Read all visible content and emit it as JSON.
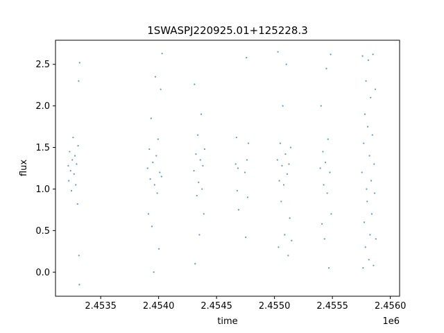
{
  "chart_data": {
    "type": "scatter",
    "title": "1SWASPJ220925.01+125228.3",
    "xlabel": "time",
    "ylabel": "flux",
    "x_offset_label": "1e6",
    "xlim": [
      2453110,
      2456080
    ],
    "ylim": [
      -0.29,
      2.79
    ],
    "x_ticks": [
      2453500,
      2454000,
      2454500,
      2455000,
      2455500,
      2456000
    ],
    "x_tick_labels": [
      "2.4535",
      "2.4540",
      "2.4545",
      "2.4550",
      "2.4555",
      "2.4560"
    ],
    "y_ticks": [
      0.0,
      0.5,
      1.0,
      1.5,
      2.0,
      2.5
    ],
    "y_tick_labels": [
      "0.0",
      "0.5",
      "1.0",
      "1.5",
      "2.0",
      "2.5"
    ],
    "grid": false,
    "marker_color": "#1f77b4",
    "series": [
      {
        "points": [
          [
            2453220,
            1.28
          ],
          [
            2453225,
            1.1
          ],
          [
            2453232,
            1.45
          ],
          [
            2453240,
            1.22
          ],
          [
            2453248,
            0.98
          ],
          [
            2453255,
            1.35
          ],
          [
            2453262,
            1.62
          ],
          [
            2453270,
            1.18
          ],
          [
            2453278,
            1.4
          ],
          [
            2453285,
            1.05
          ],
          [
            2453292,
            1.3
          ],
          [
            2453300,
            0.82
          ],
          [
            2453305,
            1.52
          ],
          [
            2453310,
            2.3
          ],
          [
            2453312,
            0.2
          ],
          [
            2453316,
            -0.15
          ],
          [
            2453318,
            2.52
          ],
          [
            2453905,
            1.25
          ],
          [
            2453912,
            0.7
          ],
          [
            2453920,
            1.48
          ],
          [
            2453928,
            1.12
          ],
          [
            2453935,
            1.85
          ],
          [
            2453942,
            0.55
          ],
          [
            2453950,
            1.32
          ],
          [
            2453958,
            0.0
          ],
          [
            2453965,
            1.05
          ],
          [
            2453972,
            2.35
          ],
          [
            2453980,
            1.4
          ],
          [
            2453988,
            0.95
          ],
          [
            2453995,
            1.6
          ],
          [
            2454003,
            0.28
          ],
          [
            2454010,
            1.2
          ],
          [
            2454018,
            2.2
          ],
          [
            2454025,
            1.15
          ],
          [
            2454030,
            2.63
          ],
          [
            2454305,
            1.22
          ],
          [
            2454310,
            2.26
          ],
          [
            2454315,
            0.1
          ],
          [
            2454322,
            1.42
          ],
          [
            2454330,
            0.92
          ],
          [
            2454338,
            1.65
          ],
          [
            2454345,
            1.08
          ],
          [
            2454352,
            0.45
          ],
          [
            2454360,
            1.35
          ],
          [
            2454368,
            1.9
          ],
          [
            2454375,
            1.0
          ],
          [
            2454382,
            1.28
          ],
          [
            2454390,
            0.7
          ],
          [
            2454397,
            1.48
          ],
          [
            2454665,
            1.3
          ],
          [
            2454672,
            1.62
          ],
          [
            2454678,
            0.98
          ],
          [
            2454685,
            1.25
          ],
          [
            2454690,
            0.75
          ],
          [
            2454745,
            1.2
          ],
          [
            2454752,
            0.42
          ],
          [
            2454758,
            2.58
          ],
          [
            2454762,
            1.35
          ],
          [
            2454768,
            0.9
          ],
          [
            2454775,
            1.55
          ],
          [
            2455025,
            1.35
          ],
          [
            2455030,
            2.65
          ],
          [
            2455035,
            0.3
          ],
          [
            2455042,
            1.1
          ],
          [
            2455050,
            1.55
          ],
          [
            2455058,
            0.85
          ],
          [
            2455065,
            1.28
          ],
          [
            2455072,
            2.0
          ],
          [
            2455080,
            1.05
          ],
          [
            2455088,
            0.45
          ],
          [
            2455095,
            1.42
          ],
          [
            2455102,
            2.5
          ],
          [
            2455110,
            1.18
          ],
          [
            2455118,
            0.2
          ],
          [
            2455125,
            1.3
          ],
          [
            2455132,
            0.65
          ],
          [
            2455140,
            1.5
          ],
          [
            2455148,
            0.38
          ],
          [
            2455395,
            1.25
          ],
          [
            2455402,
            2.0
          ],
          [
            2455410,
            0.58
          ],
          [
            2455418,
            1.45
          ],
          [
            2455425,
            1.05
          ],
          [
            2455432,
            0.4
          ],
          [
            2455440,
            1.32
          ],
          [
            2455448,
            2.45
          ],
          [
            2455455,
            0.95
          ],
          [
            2455462,
            1.6
          ],
          [
            2455470,
            0.05
          ],
          [
            2455478,
            1.2
          ],
          [
            2455485,
            2.62
          ],
          [
            2455490,
            0.7
          ],
          [
            2455755,
            1.2
          ],
          [
            2455760,
            2.6
          ],
          [
            2455765,
            0.05
          ],
          [
            2455770,
            1.55
          ],
          [
            2455775,
            0.6
          ],
          [
            2455780,
            1.9
          ],
          [
            2455785,
            0.3
          ],
          [
            2455790,
            2.3
          ],
          [
            2455795,
            1.0
          ],
          [
            2455800,
            0.85
          ],
          [
            2455805,
            1.75
          ],
          [
            2455810,
            2.55
          ],
          [
            2455815,
            0.15
          ],
          [
            2455820,
            1.4
          ],
          [
            2455825,
            0.45
          ],
          [
            2455830,
            2.1
          ],
          [
            2455835,
            1.1
          ],
          [
            2455840,
            0.7
          ],
          [
            2455845,
            1.65
          ],
          [
            2455850,
            2.62
          ],
          [
            2455855,
            0.08
          ],
          [
            2455860,
            1.3
          ],
          [
            2455865,
            0.95
          ],
          [
            2455870,
            2.2
          ],
          [
            2455875,
            0.4
          ]
        ]
      }
    ]
  }
}
